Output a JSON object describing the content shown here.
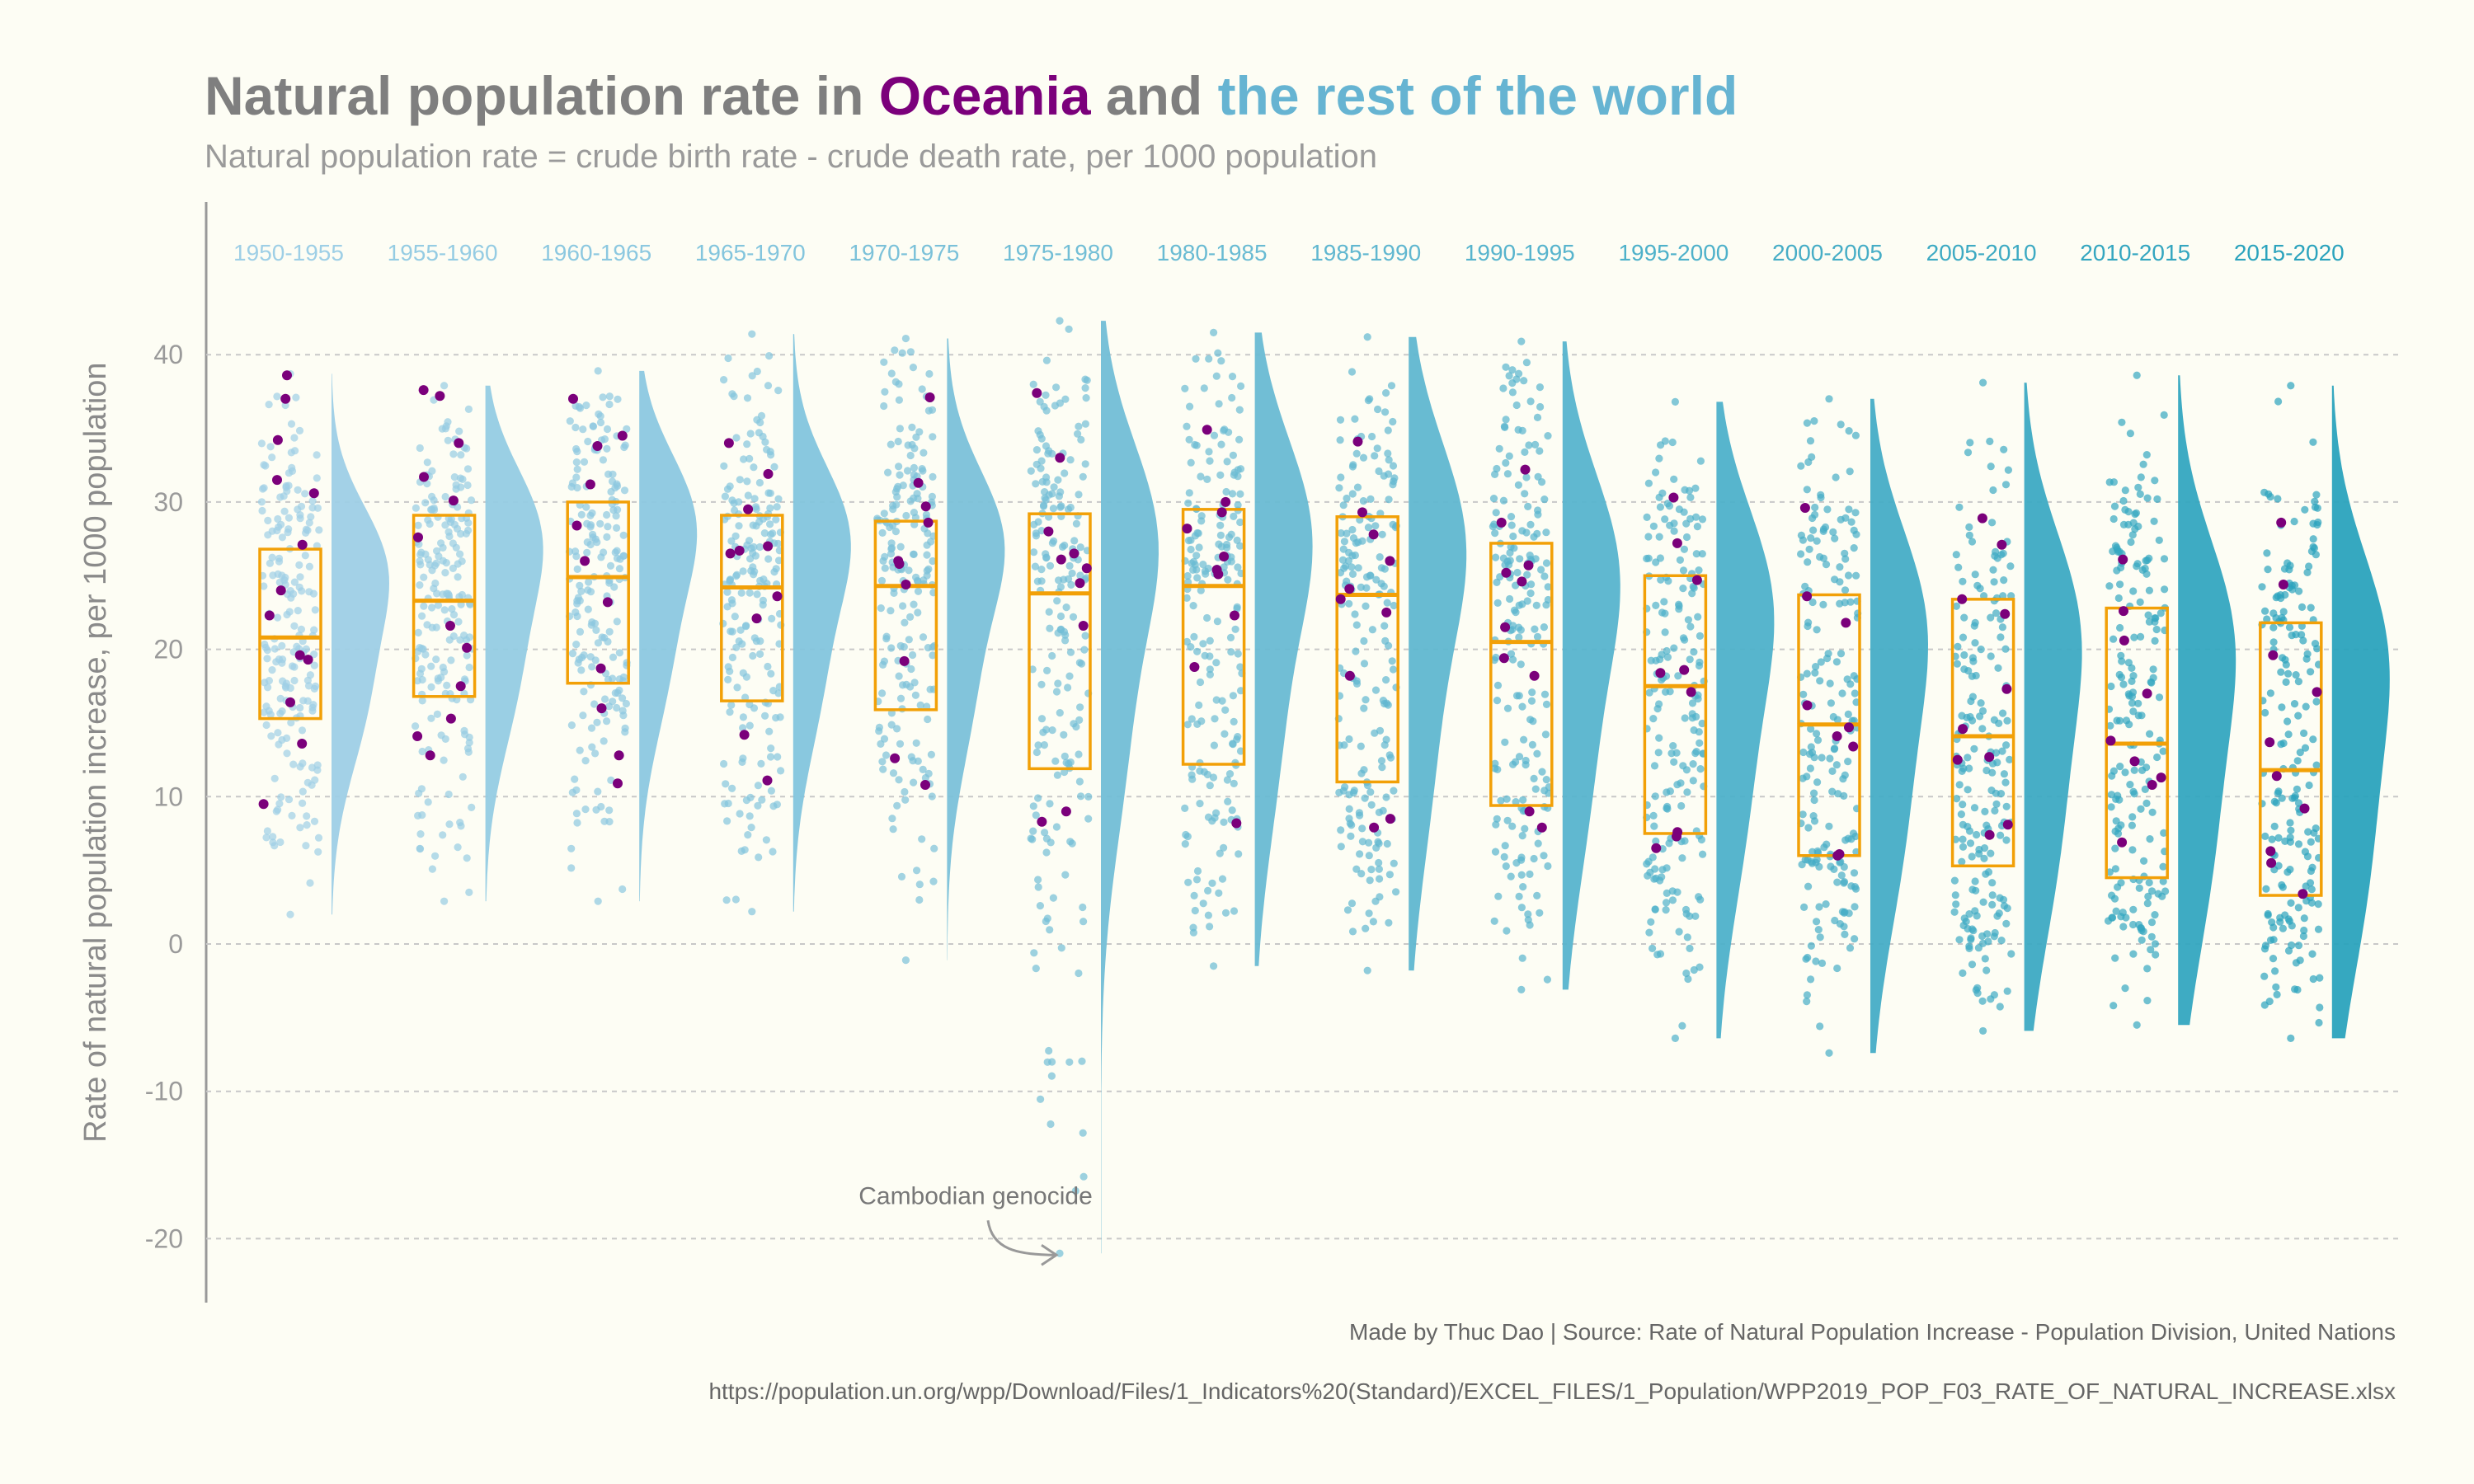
{
  "title": {
    "part1": "Natural population rate in ",
    "highlight1": "Oceania",
    "part2": " and ",
    "highlight2": "the rest of the world"
  },
  "subtitle": "Natural population rate = crude birth rate - crude death rate, per 1000 population",
  "caption": {
    "line1": "Made by Thuc Dao | Source: Rate of Natural Population Increase - Population Division, United Nations",
    "line2": "https://population.un.org/wpp/Download/Files/1_Indicators%20(Standard)/EXCEL_FILES/1_Population/WPP2019_POP_F03_RATE_OF_NATURAL_INCREASE.xlsx"
  },
  "annotation": {
    "text": "Cambodian genocide",
    "x": "1975-1980",
    "y": -21
  },
  "colors": {
    "oceania": "#7b007b",
    "world_start": "#9ecfe6",
    "world_end": "#2ba3bd",
    "box": "#f2a007",
    "axis_text": "#9a9a9a",
    "grid": "#c8c8c8"
  },
  "chart_data": {
    "type": "raincloud (box + jitter points + half-violin)",
    "ylabel": "Rate of natural population increase, per 1000 population",
    "ylim": [
      -24,
      50
    ],
    "yticks": [
      -20,
      -10,
      0,
      10,
      20,
      30,
      40
    ],
    "grid": "horizontal dashed",
    "categories": [
      "1950-1955",
      "1955-1960",
      "1960-1965",
      "1965-1970",
      "1970-1975",
      "1975-1980",
      "1980-1985",
      "1985-1990",
      "1990-1995",
      "1995-2000",
      "2000-2005",
      "2005-2010",
      "2010-2015",
      "2015-2020"
    ],
    "box": [
      {
        "q1": 15.3,
        "median": 20.8,
        "q3": 26.8
      },
      {
        "q1": 16.8,
        "median": 23.3,
        "q3": 29.1
      },
      {
        "q1": 17.7,
        "median": 24.9,
        "q3": 30.0
      },
      {
        "q1": 16.5,
        "median": 24.2,
        "q3": 29.1
      },
      {
        "q1": 15.9,
        "median": 24.3,
        "q3": 28.7
      },
      {
        "q1": 11.9,
        "median": 23.8,
        "q3": 29.2
      },
      {
        "q1": 12.2,
        "median": 24.3,
        "q3": 29.5
      },
      {
        "q1": 11.0,
        "median": 23.7,
        "q3": 29.0
      },
      {
        "q1": 9.4,
        "median": 20.5,
        "q3": 27.2
      },
      {
        "q1": 7.5,
        "median": 17.5,
        "q3": 25.0
      },
      {
        "q1": 6.0,
        "median": 14.9,
        "q3": 23.7
      },
      {
        "q1": 5.3,
        "median": 14.1,
        "q3": 23.4
      },
      {
        "q1": 4.5,
        "median": 13.6,
        "q3": 22.8
      },
      {
        "q1": 3.3,
        "median": 11.8,
        "q3": 21.8
      }
    ],
    "range": [
      {
        "min": 2.0,
        "max": 38.7
      },
      {
        "min": 2.9,
        "max": 37.9
      },
      {
        "min": 2.9,
        "max": 38.9
      },
      {
        "min": 2.2,
        "max": 41.4
      },
      {
        "min": -1.1,
        "max": 41.1
      },
      {
        "min": -21.0,
        "max": 42.3
      },
      {
        "min": -1.5,
        "max": 41.5
      },
      {
        "min": -1.8,
        "max": 41.2
      },
      {
        "min": -3.1,
        "max": 40.9
      },
      {
        "min": -6.4,
        "max": 36.8
      },
      {
        "min": -7.4,
        "max": 37.0
      },
      {
        "min": -5.9,
        "max": 38.1
      },
      {
        "min": -5.5,
        "max": 38.6
      },
      {
        "min": -6.4,
        "max": 37.9
      }
    ],
    "oceania": [
      [
        38.6,
        37.0,
        34.2,
        31.5,
        30.6,
        27.1,
        24.0,
        22.3,
        19.6,
        19.3,
        16.4,
        13.6,
        9.5
      ],
      [
        37.6,
        37.2,
        34.0,
        31.7,
        30.1,
        27.6,
        21.6,
        20.1,
        17.5,
        15.3,
        14.1,
        12.8
      ],
      [
        37.0,
        34.5,
        33.8,
        31.2,
        28.4,
        26.0,
        23.2,
        18.7,
        16.0,
        12.8,
        10.9
      ],
      [
        34.0,
        31.9,
        29.5,
        27.0,
        26.7,
        26.5,
        23.6,
        22.1,
        14.2,
        11.1
      ],
      [
        37.1,
        31.3,
        29.7,
        28.6,
        26.0,
        25.8,
        24.4,
        19.2,
        12.6,
        10.8
      ],
      [
        37.4,
        33.0,
        28.0,
        26.5,
        26.1,
        25.5,
        24.5,
        21.6,
        9.0,
        8.3
      ],
      [
        34.9,
        30.0,
        29.3,
        28.2,
        26.3,
        25.4,
        25.1,
        22.3,
        18.8,
        8.2
      ],
      [
        34.1,
        29.3,
        27.8,
        26.0,
        24.1,
        23.4,
        22.5,
        18.2,
        8.5,
        7.9
      ],
      [
        32.2,
        28.6,
        25.7,
        25.2,
        24.6,
        21.5,
        19.4,
        18.2,
        9.0,
        7.9
      ],
      [
        30.3,
        27.2,
        24.7,
        18.6,
        18.4,
        17.1,
        7.6,
        7.3,
        6.5
      ],
      [
        29.6,
        23.6,
        21.8,
        16.2,
        14.7,
        14.1,
        13.4,
        6.1,
        6.0
      ],
      [
        28.9,
        27.1,
        23.4,
        22.4,
        17.3,
        14.6,
        12.7,
        12.5,
        8.1,
        7.4
      ],
      [
        26.1,
        22.6,
        20.6,
        17.0,
        13.8,
        12.4,
        11.3,
        10.8,
        6.9
      ],
      [
        28.6,
        24.4,
        19.6,
        17.1,
        13.7,
        11.4,
        9.2,
        6.3,
        5.5,
        3.4
      ]
    ]
  }
}
